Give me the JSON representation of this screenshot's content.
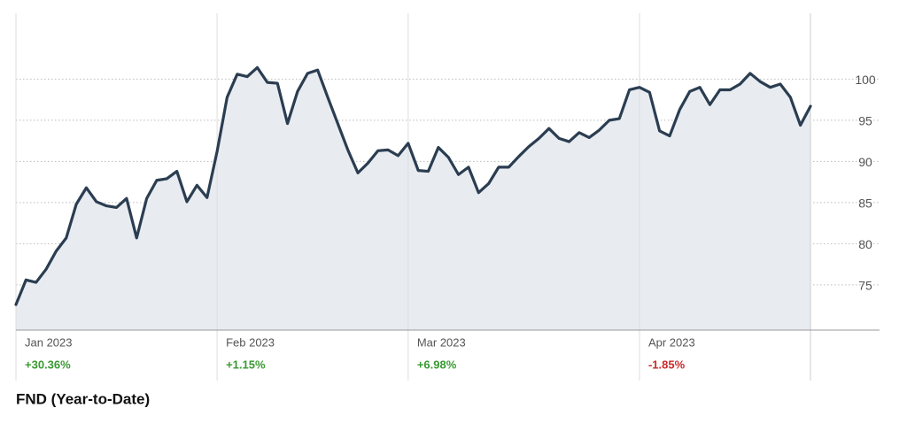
{
  "chart_data": {
    "type": "line",
    "title": "FND (Year-to-Date)",
    "categories": [
      "Jan 2023",
      null,
      null,
      null,
      null,
      null,
      null,
      null,
      null,
      null,
      null,
      null,
      null,
      null,
      null,
      null,
      null,
      null,
      null,
      null,
      "Feb 2023",
      null,
      null,
      null,
      null,
      null,
      null,
      null,
      null,
      null,
      null,
      null,
      null,
      null,
      null,
      null,
      null,
      null,
      null,
      "Mar 2023",
      null,
      null,
      null,
      null,
      null,
      null,
      null,
      null,
      null,
      null,
      null,
      null,
      null,
      null,
      null,
      null,
      null,
      null,
      null,
      null,
      null,
      null,
      "Apr 2023",
      null,
      null,
      null,
      null,
      null,
      null,
      null,
      null,
      null,
      null,
      null,
      null,
      null,
      null,
      null,
      null,
      null
    ],
    "values": [
      72.6,
      75.6,
      75.3,
      76.9,
      79.1,
      80.7,
      84.8,
      86.8,
      85.1,
      84.6,
      84.4,
      85.5,
      80.7,
      85.5,
      87.7,
      87.9,
      88.8,
      85.1,
      87.1,
      85.6,
      91.2,
      97.8,
      100.6,
      100.3,
      101.4,
      99.6,
      99.5,
      94.6,
      98.5,
      100.7,
      101.1,
      97.8,
      94.6,
      91.4,
      88.6,
      89.8,
      91.3,
      91.4,
      90.7,
      92.2,
      88.9,
      88.8,
      91.7,
      90.5,
      88.4,
      89.3,
      86.2,
      87.3,
      89.3,
      89.3,
      90.6,
      91.8,
      92.8,
      94.0,
      92.8,
      92.4,
      93.5,
      92.9,
      93.8,
      95.0,
      95.2,
      98.7,
      99.0,
      98.4,
      93.7,
      93.1,
      96.3,
      98.5,
      99.0,
      96.9,
      98.7,
      98.7,
      99.4,
      100.7,
      99.7,
      99.0,
      99.4,
      97.8,
      94.4,
      96.7
    ],
    "period_changes": [
      {
        "value": 30.36,
        "label": "+30.36%"
      },
      {
        "value": 1.15,
        "label": "+1.15%"
      },
      {
        "value": 6.98,
        "label": "+6.98%"
      },
      {
        "value": -1.85,
        "label": "-1.85%"
      }
    ],
    "color": "#2b3d51",
    "area_color": "#e8ecf1",
    "ylim": [
      69.5,
      108
    ],
    "yticks": [
      75,
      80,
      85,
      90,
      95,
      100
    ],
    "grid": true
  }
}
